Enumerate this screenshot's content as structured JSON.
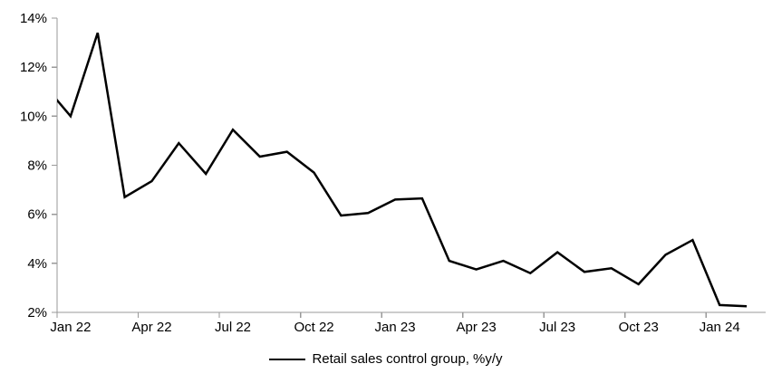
{
  "chart_data": {
    "type": "line",
    "title": "",
    "xlabel": "",
    "ylabel": "",
    "x": [
      "Jan 22",
      "Feb 22",
      "Mar 22",
      "Apr 22",
      "May 22",
      "Jun 22",
      "Jul 22",
      "Aug 22",
      "Sep 22",
      "Oct 22",
      "Nov 22",
      "Dec 22",
      "Jan 23",
      "Feb 23",
      "Mar 23",
      "Apr 23",
      "May 23",
      "Jun 23",
      "Jul 23",
      "Aug 23",
      "Sep 23",
      "Oct 23",
      "Nov 23",
      "Dec 23",
      "Jan 24",
      "Feb 24"
    ],
    "series": [
      {
        "name": "Retail sales control group, %y/y",
        "values": [
          10.0,
          13.4,
          6.7,
          7.35,
          8.9,
          7.65,
          9.45,
          8.35,
          8.55,
          7.7,
          5.95,
          6.05,
          6.6,
          6.65,
          4.1,
          3.75,
          4.1,
          3.6,
          4.45,
          3.65,
          3.8,
          3.15,
          4.35,
          4.95,
          2.3,
          2.25
        ],
        "color": "#000000",
        "line_width": 2.5
      }
    ],
    "lead_in": {
      "note": "line enters plot clipped at left axis at ~10.7%, implying previous month",
      "value": 11.3
    },
    "y_axis": {
      "min": 2,
      "max": 14,
      "tick_step": 2,
      "tick_labels": [
        "2%",
        "4%",
        "6%",
        "8%",
        "10%",
        "12%",
        "14%"
      ],
      "tick_suffix": "%"
    },
    "x_axis": {
      "tick_labels": [
        "Jan 22",
        "Apr 22",
        "Jul 22",
        "Oct 22",
        "Jan 23",
        "Apr 23",
        "Jul 23",
        "Oct 23",
        "Jan 24"
      ],
      "months_per_tick": 3
    },
    "legend": {
      "position": "bottom-center",
      "entries": [
        {
          "label": "Retail sales control group, %y/y",
          "sample": "line",
          "color": "#000000"
        }
      ]
    },
    "grid": false,
    "axis_color": "#999999",
    "text_color": "#000000",
    "background": "#ffffff"
  }
}
